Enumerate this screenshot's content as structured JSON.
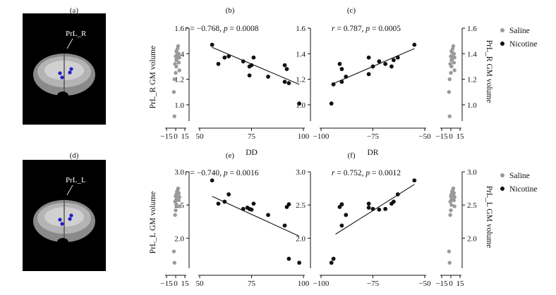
{
  "legend": [
    {
      "label": "Saline",
      "color": "#9a9a9a"
    },
    {
      "label": "Nicotine",
      "color": "#111111"
    }
  ],
  "rows": [
    {
      "panel_letters": [
        "(a)",
        "(b)",
        "(c)"
      ],
      "brain_label": "PrL_R",
      "ylabel": "PrL_R GM volume",
      "ylim": [
        0.9,
        1.6
      ],
      "yticks": [
        "1.0",
        "1.2",
        "1.4",
        "1.6"
      ],
      "yticks_v": [
        1.0,
        1.2,
        1.4,
        1.6
      ],
      "annotations": [
        "r = −0.768, p = 0.0008",
        "r = 0.787, p = 0.0005"
      ]
    },
    {
      "panel_letters": [
        "(d)",
        "(e)",
        "(f)"
      ],
      "brain_label": "PrL_L",
      "ylabel": "PrL_L GM volume",
      "ylim": [
        1.6,
        3.0
      ],
      "yticks": [
        "2.0",
        "2.5",
        "3.0"
      ],
      "yticks_v": [
        2.0,
        2.5,
        3.0
      ],
      "annotations": [
        "r = −0.740, p = 0.0016",
        "r = 0.752, p = 0.0012"
      ]
    }
  ],
  "dist_xticks": [
    "−15",
    "0",
    "15"
  ],
  "chart_data": [
    {
      "type": "scatter",
      "panel": "(b)",
      "xlabel": "DD",
      "ylabel": "PrL_R GM volume",
      "xlim": [
        50,
        100
      ],
      "ylim": [
        0.9,
        1.6
      ],
      "xticks": [
        "50",
        "75",
        "100"
      ],
      "annotation": "r = −0.768, p = 0.0008",
      "series": [
        {
          "name": "Nicotine",
          "points": [
            [
              56,
              1.47
            ],
            [
              59,
              1.32
            ],
            [
              62,
              1.37
            ],
            [
              64,
              1.38
            ],
            [
              71,
              1.34
            ],
            [
              74,
              1.3
            ],
            [
              75,
              1.31
            ],
            [
              74,
              1.23
            ],
            [
              76,
              1.37
            ],
            [
              83,
              1.22
            ],
            [
              91,
              1.31
            ],
            [
              92,
              1.28
            ],
            [
              91,
              1.18
            ],
            [
              93,
              1.17
            ],
            [
              98,
              1.01
            ]
          ]
        }
      ],
      "fit": [
        [
          56,
          1.45
        ],
        [
          98,
          1.16
        ]
      ]
    },
    {
      "type": "scatter",
      "panel": "(c)",
      "xlabel": "DR",
      "ylabel": "PrL_R GM volume",
      "xlim": [
        -100,
        -50
      ],
      "ylim": [
        0.9,
        1.6
      ],
      "xticks": [
        "−100",
        "−75",
        "−50"
      ],
      "annotation": "r = 0.787, p = 0.0005",
      "series": [
        {
          "name": "Nicotine",
          "points": [
            [
              -95,
              1.01
            ],
            [
              -94,
              1.16
            ],
            [
              -91,
              1.32
            ],
            [
              -90,
              1.28
            ],
            [
              -90,
              1.18
            ],
            [
              -88,
              1.22
            ],
            [
              -77,
              1.37
            ],
            [
              -77,
              1.24
            ],
            [
              -75,
              1.3
            ],
            [
              -72,
              1.34
            ],
            [
              -69,
              1.32
            ],
            [
              -66,
              1.3
            ],
            [
              -65,
              1.35
            ],
            [
              -63,
              1.37
            ],
            [
              -55,
              1.47
            ]
          ]
        }
      ],
      "fit": [
        [
          -95,
          1.16
        ],
        [
          -55,
          1.44
        ]
      ]
    },
    {
      "type": "scatter",
      "panel": "(e)",
      "xlabel": "DD",
      "ylabel": "PrL_L GM volume",
      "xlim": [
        50,
        100
      ],
      "ylim": [
        1.6,
        3.0
      ],
      "xticks": [
        "50",
        "75",
        "100"
      ],
      "annotation": "r = −0.740, p = 0.0016",
      "series": [
        {
          "name": "Nicotine",
          "points": [
            [
              56,
              2.87
            ],
            [
              59,
              2.52
            ],
            [
              62,
              2.55
            ],
            [
              64,
              2.66
            ],
            [
              71,
              2.44
            ],
            [
              73,
              2.46
            ],
            [
              74,
              2.44
            ],
            [
              75,
              2.43
            ],
            [
              76,
              2.52
            ],
            [
              83,
              2.35
            ],
            [
              91,
              2.19
            ],
            [
              92,
              2.47
            ],
            [
              93,
              2.51
            ],
            [
              93,
              1.69
            ],
            [
              98,
              1.63
            ]
          ]
        }
      ],
      "fit": [
        [
          56,
          2.63
        ],
        [
          98,
          2.03
        ]
      ]
    },
    {
      "type": "scatter",
      "panel": "(f)",
      "xlabel": "DR",
      "ylabel": "PrL_L GM volume",
      "xlim": [
        -100,
        -50
      ],
      "ylim": [
        1.6,
        3.0
      ],
      "xticks": [
        "−100",
        "−75",
        "−50"
      ],
      "annotation": "r = 0.752, p = 0.0012",
      "series": [
        {
          "name": "Nicotine",
          "points": [
            [
              -95,
              1.63
            ],
            [
              -94,
              1.69
            ],
            [
              -91,
              2.47
            ],
            [
              -90,
              2.51
            ],
            [
              -90,
              2.19
            ],
            [
              -88,
              2.35
            ],
            [
              -77,
              2.52
            ],
            [
              -77,
              2.46
            ],
            [
              -75,
              2.44
            ],
            [
              -72,
              2.43
            ],
            [
              -69,
              2.44
            ],
            [
              -66,
              2.52
            ],
            [
              -65,
              2.55
            ],
            [
              -63,
              2.66
            ],
            [
              -55,
              2.87
            ]
          ]
        }
      ],
      "fit": [
        [
          -93,
          2.06
        ],
        [
          -55,
          2.81
        ]
      ]
    },
    {
      "type": "scatter",
      "panel": "distribution (b,c)",
      "xlim": [
        -15,
        15
      ],
      "ylim": [
        0.9,
        1.6
      ],
      "series": [
        {
          "name": "Saline",
          "points": [
            [
              -3,
              1.1
            ],
            [
              -2,
              0.91
            ],
            [
              -2,
              1.2
            ],
            [
              0,
              1.25
            ],
            [
              1,
              1.3
            ],
            [
              -1,
              1.32
            ],
            [
              1,
              1.35
            ],
            [
              2,
              1.36
            ],
            [
              3,
              1.37
            ],
            [
              4,
              1.38
            ],
            [
              2,
              1.41
            ],
            [
              3,
              1.44
            ],
            [
              4,
              1.46
            ],
            [
              5,
              1.33
            ],
            [
              6,
              1.37
            ],
            [
              6,
              1.27
            ],
            [
              5,
              1.4
            ],
            [
              0,
              1.38
            ],
            [
              1,
              1.42
            ]
          ]
        }
      ]
    },
    {
      "type": "scatter",
      "panel": "distribution (e,f)",
      "xlim": [
        -15,
        15
      ],
      "ylim": [
        1.6,
        3.0
      ],
      "series": [
        {
          "name": "Saline",
          "points": [
            [
              -3,
              1.8
            ],
            [
              -2,
              1.63
            ],
            [
              -1,
              2.35
            ],
            [
              0,
              2.42
            ],
            [
              1,
              2.5
            ],
            [
              -1,
              2.55
            ],
            [
              1,
              2.58
            ],
            [
              2,
              2.6
            ],
            [
              3,
              2.62
            ],
            [
              4,
              2.65
            ],
            [
              2,
              2.7
            ],
            [
              3,
              2.72
            ],
            [
              4,
              2.75
            ],
            [
              5,
              2.57
            ],
            [
              6,
              2.62
            ],
            [
              6,
              2.48
            ],
            [
              5,
              2.68
            ],
            [
              0,
              2.63
            ],
            [
              1,
              2.66
            ]
          ]
        }
      ]
    }
  ]
}
